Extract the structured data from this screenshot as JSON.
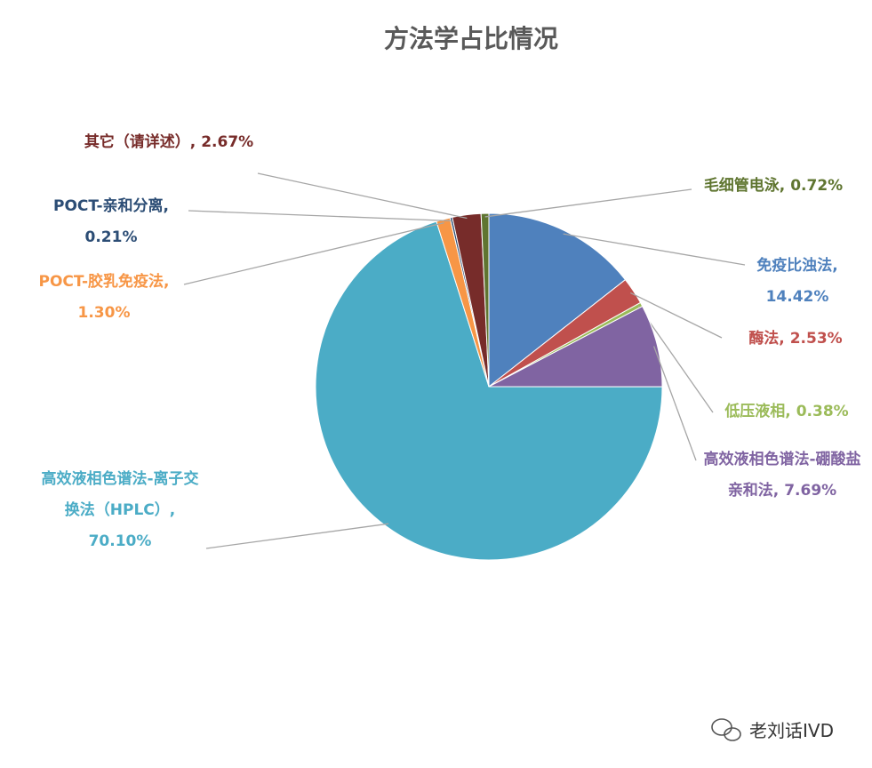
{
  "chart_data": {
    "type": "pie",
    "title": "方法学占比情况",
    "categories": [
      "免疫比浊法,",
      "酶法,",
      "低压液相,",
      "高效液相色谱法-硼酸盐亲和法,",
      "高效液相色谱法-离子交换法（HPLC）,",
      "POCT-胶乳免疫法,",
      "POCT-亲和分离,",
      "其它（请详述）,",
      "毛细管电泳,"
    ],
    "values": [
      14.42,
      2.53,
      0.38,
      7.69,
      70.1,
      1.3,
      0.21,
      2.67,
      0.72
    ],
    "value_labels": [
      "14.42%",
      "2.53%",
      "0.38%",
      "7.69%",
      "70.10%",
      "1.30%",
      "0.21%",
      "2.67%",
      "0.72%"
    ],
    "colors": [
      "#4f81bd",
      "#c0504d",
      "#9bbb59",
      "#8064a2",
      "#4bacc6",
      "#f79646",
      "#2c4d75",
      "#772c2a",
      "#5f7530"
    ],
    "watermark": "老刘话IVD"
  }
}
